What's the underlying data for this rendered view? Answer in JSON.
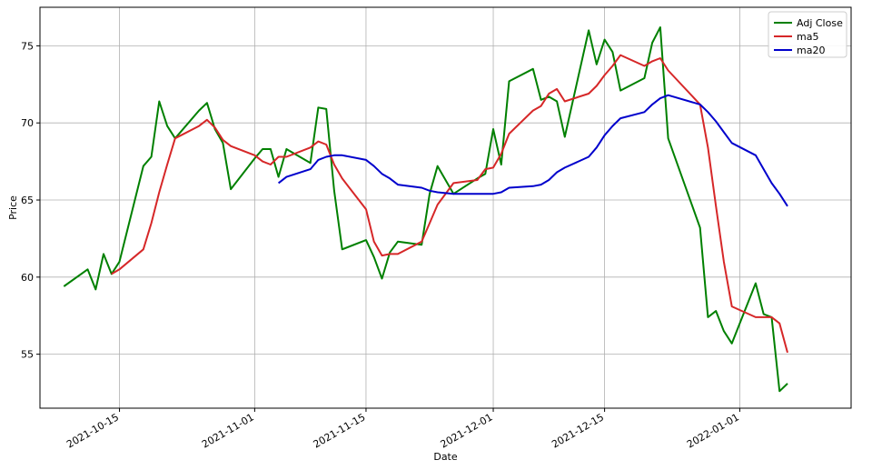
{
  "chart_data": {
    "type": "line",
    "title": "",
    "xlabel": "Date",
    "ylabel": "Price",
    "x_ticks": [
      "2021-10-15",
      "2021-11-01",
      "2021-11-15",
      "2021-12-01",
      "2021-12-15",
      "2022-01-01"
    ],
    "y_ticks": [
      55,
      60,
      65,
      70,
      75
    ],
    "xlim": [
      "2021-10-05",
      "2022-01-15"
    ],
    "ylim": [
      51.5,
      77.5
    ],
    "grid": true,
    "legend_position": "top-right",
    "series": [
      {
        "name": "Adj Close",
        "color": "#008000",
        "points": [
          [
            "2021-10-08",
            59.4
          ],
          [
            "2021-10-11",
            60.5
          ],
          [
            "2021-10-12",
            59.2
          ],
          [
            "2021-10-13",
            61.5
          ],
          [
            "2021-10-14",
            60.2
          ],
          [
            "2021-10-15",
            61.0
          ],
          [
            "2021-10-18",
            67.2
          ],
          [
            "2021-10-19",
            67.8
          ],
          [
            "2021-10-20",
            71.4
          ],
          [
            "2021-10-21",
            69.8
          ],
          [
            "2021-10-22",
            69.0
          ],
          [
            "2021-10-25",
            70.8
          ],
          [
            "2021-10-26",
            71.3
          ],
          [
            "2021-10-27",
            69.6
          ],
          [
            "2021-10-28",
            68.7
          ],
          [
            "2021-10-29",
            65.7
          ],
          [
            "2021-11-01",
            67.7
          ],
          [
            "2021-11-02",
            68.3
          ],
          [
            "2021-11-03",
            68.3
          ],
          [
            "2021-11-04",
            66.5
          ],
          [
            "2021-11-05",
            68.3
          ],
          [
            "2021-11-08",
            67.4
          ],
          [
            "2021-11-09",
            71.0
          ],
          [
            "2021-11-10",
            70.9
          ],
          [
            "2021-11-11",
            65.6
          ],
          [
            "2021-11-12",
            61.8
          ],
          [
            "2021-11-15",
            62.4
          ],
          [
            "2021-11-16",
            61.3
          ],
          [
            "2021-11-17",
            59.9
          ],
          [
            "2021-11-18",
            61.6
          ],
          [
            "2021-11-19",
            62.3
          ],
          [
            "2021-11-22",
            62.1
          ],
          [
            "2021-11-23",
            65.4
          ],
          [
            "2021-11-24",
            67.2
          ],
          [
            "2021-11-26",
            65.4
          ],
          [
            "2021-11-29",
            66.4
          ],
          [
            "2021-11-30",
            66.7
          ],
          [
            "2021-12-01",
            69.6
          ],
          [
            "2021-12-02",
            67.3
          ],
          [
            "2021-12-03",
            72.7
          ],
          [
            "2021-12-06",
            73.5
          ],
          [
            "2021-12-07",
            71.5
          ],
          [
            "2021-12-08",
            71.7
          ],
          [
            "2021-12-09",
            71.4
          ],
          [
            "2021-12-10",
            69.1
          ],
          [
            "2021-12-13",
            76.0
          ],
          [
            "2021-12-14",
            73.8
          ],
          [
            "2021-12-15",
            75.4
          ],
          [
            "2021-12-16",
            74.6
          ],
          [
            "2021-12-17",
            72.1
          ],
          [
            "2021-12-20",
            72.9
          ],
          [
            "2021-12-21",
            75.2
          ],
          [
            "2021-12-22",
            76.2
          ],
          [
            "2021-12-23",
            69.0
          ],
          [
            "2021-12-27",
            63.2
          ],
          [
            "2021-12-28",
            57.4
          ],
          [
            "2021-12-29",
            57.8
          ],
          [
            "2021-12-30",
            56.5
          ],
          [
            "2021-12-31",
            55.7
          ],
          [
            "2022-01-03",
            59.6
          ],
          [
            "2022-01-04",
            57.6
          ],
          [
            "2022-01-05",
            57.4
          ],
          [
            "2022-01-06",
            52.6
          ],
          [
            "2022-01-07",
            53.1
          ]
        ]
      },
      {
        "name": "ma5",
        "color": "#d62728",
        "points": [
          [
            "2021-10-14",
            60.2
          ],
          [
            "2021-10-15",
            60.5
          ],
          [
            "2021-10-18",
            61.8
          ],
          [
            "2021-10-19",
            63.5
          ],
          [
            "2021-10-20",
            65.5
          ],
          [
            "2021-10-21",
            67.3
          ],
          [
            "2021-10-22",
            69.0
          ],
          [
            "2021-10-25",
            69.8
          ],
          [
            "2021-10-26",
            70.2
          ],
          [
            "2021-10-27",
            69.7
          ],
          [
            "2021-10-28",
            68.9
          ],
          [
            "2021-10-29",
            68.5
          ],
          [
            "2021-11-01",
            67.9
          ],
          [
            "2021-11-02",
            67.5
          ],
          [
            "2021-11-03",
            67.3
          ],
          [
            "2021-11-04",
            67.8
          ],
          [
            "2021-11-05",
            67.8
          ],
          [
            "2021-11-08",
            68.4
          ],
          [
            "2021-11-09",
            68.8
          ],
          [
            "2021-11-10",
            68.6
          ],
          [
            "2021-11-11",
            67.3
          ],
          [
            "2021-11-12",
            66.4
          ],
          [
            "2021-11-15",
            64.4
          ],
          [
            "2021-11-16",
            62.3
          ],
          [
            "2021-11-17",
            61.4
          ],
          [
            "2021-11-18",
            61.5
          ],
          [
            "2021-11-19",
            61.5
          ],
          [
            "2021-11-22",
            62.3
          ],
          [
            "2021-11-23",
            63.5
          ],
          [
            "2021-11-24",
            64.7
          ],
          [
            "2021-11-26",
            66.1
          ],
          [
            "2021-11-29",
            66.3
          ],
          [
            "2021-11-30",
            67.0
          ],
          [
            "2021-12-01",
            67.1
          ],
          [
            "2021-12-02",
            68.0
          ],
          [
            "2021-12-03",
            69.3
          ],
          [
            "2021-12-06",
            70.8
          ],
          [
            "2021-12-07",
            71.1
          ],
          [
            "2021-12-08",
            71.9
          ],
          [
            "2021-12-09",
            72.2
          ],
          [
            "2021-12-10",
            71.4
          ],
          [
            "2021-12-13",
            71.9
          ],
          [
            "2021-12-14",
            72.4
          ],
          [
            "2021-12-15",
            73.1
          ],
          [
            "2021-12-16",
            73.7
          ],
          [
            "2021-12-17",
            74.4
          ],
          [
            "2021-12-20",
            73.7
          ],
          [
            "2021-12-21",
            74.0
          ],
          [
            "2021-12-22",
            74.2
          ],
          [
            "2021-12-23",
            73.4
          ],
          [
            "2021-12-27",
            71.2
          ],
          [
            "2021-12-28",
            68.4
          ],
          [
            "2021-12-29",
            64.6
          ],
          [
            "2021-12-30",
            61.0
          ],
          [
            "2021-12-31",
            58.1
          ],
          [
            "2022-01-03",
            57.4
          ],
          [
            "2022-01-04",
            57.4
          ],
          [
            "2022-01-05",
            57.4
          ],
          [
            "2022-01-06",
            57.0
          ],
          [
            "2022-01-07",
            55.1
          ]
        ]
      },
      {
        "name": "ma20",
        "color": "#0000cc",
        "points": [
          [
            "2021-11-04",
            66.1
          ],
          [
            "2021-11-05",
            66.5
          ],
          [
            "2021-11-08",
            67.0
          ],
          [
            "2021-11-09",
            67.6
          ],
          [
            "2021-11-10",
            67.8
          ],
          [
            "2021-11-11",
            67.9
          ],
          [
            "2021-11-12",
            67.9
          ],
          [
            "2021-11-15",
            67.6
          ],
          [
            "2021-11-16",
            67.2
          ],
          [
            "2021-11-17",
            66.7
          ],
          [
            "2021-11-18",
            66.4
          ],
          [
            "2021-11-19",
            66.0
          ],
          [
            "2021-11-22",
            65.8
          ],
          [
            "2021-11-23",
            65.6
          ],
          [
            "2021-11-24",
            65.5
          ],
          [
            "2021-11-26",
            65.4
          ],
          [
            "2021-11-29",
            65.4
          ],
          [
            "2021-11-30",
            65.4
          ],
          [
            "2021-12-01",
            65.4
          ],
          [
            "2021-12-02",
            65.5
          ],
          [
            "2021-12-03",
            65.8
          ],
          [
            "2021-12-06",
            65.9
          ],
          [
            "2021-12-07",
            66.0
          ],
          [
            "2021-12-08",
            66.3
          ],
          [
            "2021-12-09",
            66.8
          ],
          [
            "2021-12-10",
            67.1
          ],
          [
            "2021-12-13",
            67.8
          ],
          [
            "2021-12-14",
            68.4
          ],
          [
            "2021-12-15",
            69.2
          ],
          [
            "2021-12-16",
            69.8
          ],
          [
            "2021-12-17",
            70.3
          ],
          [
            "2021-12-20",
            70.7
          ],
          [
            "2021-12-21",
            71.2
          ],
          [
            "2021-12-22",
            71.6
          ],
          [
            "2021-12-23",
            71.8
          ],
          [
            "2021-12-27",
            71.2
          ],
          [
            "2021-12-28",
            70.7
          ],
          [
            "2021-12-29",
            70.1
          ],
          [
            "2021-12-30",
            69.4
          ],
          [
            "2021-12-31",
            68.7
          ],
          [
            "2022-01-03",
            67.9
          ],
          [
            "2022-01-04",
            67.0
          ],
          [
            "2022-01-05",
            66.1
          ],
          [
            "2022-01-06",
            65.4
          ],
          [
            "2022-01-07",
            64.6
          ]
        ]
      }
    ]
  }
}
